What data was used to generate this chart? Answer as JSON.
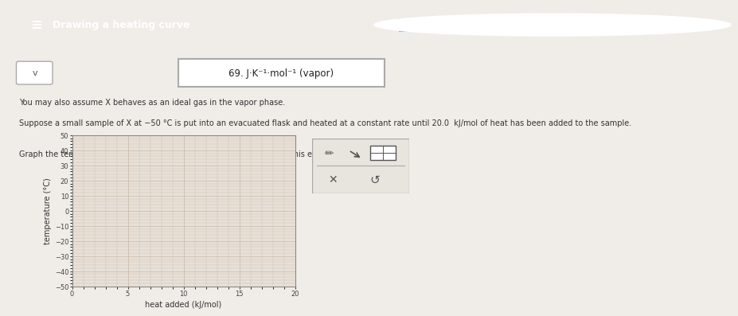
{
  "title": "Drawing a heating curve",
  "given_info": "69. J·K⁻¹·mol⁻¹ (vapor)",
  "problem_text_1": "You may also assume X behaves as an ideal gas in the vapor phase.",
  "problem_text_2": "Suppose a small sample of X at −50 °C is put into an evacuated flask and heated at a constant rate until 20.0  kJ/mol of heat has been added to the sample.",
  "problem_text_3": "Graph the temperature of the sample that would be observed during this experiment.",
  "xlabel": "heat added (kJ/mol)",
  "ylabel": "temperature (°C)",
  "xmin": 0,
  "xmax": 20,
  "ymin": -50,
  "ymax": 50,
  "xticks": [
    0,
    5,
    10,
    15,
    20
  ],
  "yticks": [
    -50,
    -40,
    -30,
    -20,
    -10,
    0,
    10,
    20,
    30,
    40,
    50
  ],
  "bg_color": "#f0ece8",
  "plot_bg": "#e8e0d8",
  "header_color": "#4a7a9b",
  "grid_color": "#c8b8a8",
  "text_color": "#333333",
  "toolbar_bg": "#e8e4de"
}
